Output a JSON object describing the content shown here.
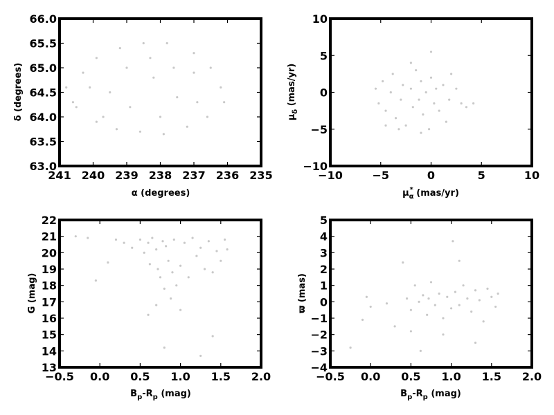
{
  "chart_data": [
    {
      "type": "scatter",
      "xlabel": "α (degrees)",
      "ylabel": "δ (degrees)",
      "xlim": [
        241,
        235
      ],
      "ylim": [
        63.0,
        66.0
      ],
      "xticks": [
        241,
        240,
        239,
        238,
        237,
        236,
        235
      ],
      "xtick_labels": [
        "241",
        "240",
        "239",
        "238",
        "237",
        "236",
        "235"
      ],
      "yticks": [
        63.0,
        63.5,
        64.0,
        64.5,
        65.0,
        65.5,
        66.0
      ],
      "ytick_labels": [
        "63.0",
        "63.5",
        "64.0",
        "64.5",
        "65.0",
        "65.5",
        "66.0"
      ],
      "point_color": "#c8c8c8",
      "points": [
        [
          240.3,
          64.9
        ],
        [
          239.9,
          65.2
        ],
        [
          239.2,
          65.4
        ],
        [
          238.5,
          65.5
        ],
        [
          237.8,
          65.5
        ],
        [
          237.0,
          65.3
        ],
        [
          236.5,
          65.0
        ],
        [
          236.2,
          64.6
        ],
        [
          236.1,
          64.3
        ],
        [
          236.6,
          64.0
        ],
        [
          237.2,
          63.8
        ],
        [
          237.9,
          63.65
        ],
        [
          238.6,
          63.7
        ],
        [
          239.3,
          63.75
        ],
        [
          239.9,
          63.9
        ],
        [
          240.5,
          64.2
        ],
        [
          240.8,
          64.6
        ],
        [
          240.6,
          64.3
        ],
        [
          239.5,
          64.5
        ],
        [
          238.9,
          64.2
        ],
        [
          238.2,
          64.8
        ],
        [
          237.5,
          64.4
        ],
        [
          237.0,
          64.9
        ],
        [
          239.0,
          65.0
        ],
        [
          238.0,
          64.0
        ],
        [
          238.3,
          65.2
        ],
        [
          237.6,
          65.0
        ],
        [
          236.9,
          64.3
        ],
        [
          239.7,
          64.0
        ],
        [
          240.1,
          64.6
        ]
      ]
    },
    {
      "type": "scatter",
      "xlabel": "μ*α (mas/yr)",
      "ylabel": "μδ (mas/yr)",
      "xlim": [
        -10,
        10
      ],
      "ylim": [
        -10,
        10
      ],
      "xticks": [
        -10,
        -5,
        0,
        5,
        10
      ],
      "xtick_labels": [
        "−10",
        "−5",
        "0",
        "5",
        "10"
      ],
      "yticks": [
        -10,
        -5,
        0,
        5,
        10
      ],
      "ytick_labels": [
        "−10",
        "−5",
        "0",
        "5",
        "10"
      ],
      "point_color": "#c8c8c8",
      "points": [
        [
          -5.5,
          0.5
        ],
        [
          -5.2,
          -1.5
        ],
        [
          -4.8,
          1.5
        ],
        [
          -4.5,
          -2.5
        ],
        [
          -4.0,
          0.0
        ],
        [
          -3.8,
          2.5
        ],
        [
          -3.5,
          -3.5
        ],
        [
          -3.0,
          -1.0
        ],
        [
          -2.8,
          1.0
        ],
        [
          -2.5,
          -4.5
        ],
        [
          -2.0,
          0.5
        ],
        [
          -1.8,
          -2.0
        ],
        [
          -1.5,
          3.0
        ],
        [
          -1.2,
          -1.0
        ],
        [
          -1.0,
          1.5
        ],
        [
          -0.8,
          -3.0
        ],
        [
          -0.5,
          0.0
        ],
        [
          -0.2,
          -5.0
        ],
        [
          0.0,
          2.0
        ],
        [
          0.3,
          -1.5
        ],
        [
          0.5,
          0.5
        ],
        [
          0.8,
          -2.5
        ],
        [
          1.2,
          1.0
        ],
        [
          1.8,
          -1.0
        ],
        [
          2.5,
          0.5
        ],
        [
          3.0,
          -1.5
        ],
        [
          3.5,
          -2.0
        ],
        [
          4.2,
          -1.5
        ],
        [
          0.0,
          5.5
        ],
        [
          -2.0,
          4.0
        ],
        [
          -4.5,
          -4.5
        ],
        [
          -3.2,
          -5.0
        ],
        [
          1.5,
          -4.0
        ],
        [
          -1.0,
          -5.5
        ],
        [
          2.0,
          2.5
        ]
      ]
    },
    {
      "type": "scatter",
      "xlabel": "Bp-Rp  (mag)",
      "ylabel": "G (mag)",
      "xlim": [
        -0.5,
        2.0
      ],
      "ylim": [
        13,
        22
      ],
      "xticks": [
        -0.5,
        0.0,
        0.5,
        1.0,
        1.5,
        2.0
      ],
      "xtick_labels": [
        "−0.5",
        "0.0",
        "0.5",
        "1.0",
        "1.5",
        "2.0"
      ],
      "yticks": [
        13,
        14,
        15,
        16,
        17,
        18,
        19,
        20,
        21,
        22
      ],
      "ytick_labels": [
        "13",
        "14",
        "15",
        "16",
        "17",
        "18",
        "19",
        "20",
        "21",
        "22"
      ],
      "point_color": "#c8c8c8",
      "points": [
        [
          -0.3,
          21.0
        ],
        [
          -0.15,
          20.9
        ],
        [
          -0.05,
          18.3
        ],
        [
          0.1,
          19.4
        ],
        [
          0.2,
          20.8
        ],
        [
          0.3,
          20.6
        ],
        [
          0.4,
          20.3
        ],
        [
          0.5,
          20.8
        ],
        [
          0.55,
          20.0
        ],
        [
          0.6,
          20.6
        ],
        [
          0.62,
          19.3
        ],
        [
          0.65,
          20.9
        ],
        [
          0.7,
          20.2
        ],
        [
          0.72,
          19.0
        ],
        [
          0.75,
          18.5
        ],
        [
          0.78,
          20.7
        ],
        [
          0.8,
          17.8
        ],
        [
          0.82,
          20.4
        ],
        [
          0.85,
          19.5
        ],
        [
          0.88,
          17.2
        ],
        [
          0.9,
          18.8
        ],
        [
          0.92,
          20.8
        ],
        [
          0.95,
          18.0
        ],
        [
          1.0,
          19.2
        ],
        [
          1.05,
          20.6
        ],
        [
          1.1,
          18.5
        ],
        [
          1.15,
          20.9
        ],
        [
          1.2,
          19.8
        ],
        [
          1.25,
          20.3
        ],
        [
          1.3,
          19.0
        ],
        [
          1.35,
          20.7
        ],
        [
          1.4,
          18.8
        ],
        [
          1.45,
          20.1
        ],
        [
          1.5,
          19.5
        ],
        [
          1.55,
          20.8
        ],
        [
          1.58,
          20.2
        ],
        [
          0.8,
          14.2
        ],
        [
          1.25,
          13.7
        ],
        [
          1.4,
          14.9
        ],
        [
          0.7,
          16.8
        ],
        [
          1.0,
          16.5
        ],
        [
          0.6,
          16.2
        ]
      ]
    },
    {
      "type": "scatter",
      "xlabel": "Bp-Rp  (mag)",
      "ylabel": "ϖ (mas)",
      "xlim": [
        -0.5,
        2.0
      ],
      "ylim": [
        -4,
        5
      ],
      "xticks": [
        -0.5,
        0.0,
        0.5,
        1.0,
        1.5,
        2.0
      ],
      "xtick_labels": [
        "−0.5",
        "0.0",
        "0.5",
        "1.0",
        "1.5",
        "2.0"
      ],
      "yticks": [
        -4,
        -3,
        -2,
        -1,
        0,
        1,
        2,
        3,
        4,
        5
      ],
      "ytick_labels": [
        "−4",
        "−3",
        "−2",
        "−1",
        "0",
        "1",
        "2",
        "3",
        "4",
        "5"
      ],
      "point_color": "#c8c8c8",
      "points": [
        [
          -0.25,
          -2.8
        ],
        [
          -0.1,
          -1.1
        ],
        [
          -0.05,
          0.3
        ],
        [
          0.0,
          -0.3
        ],
        [
          0.2,
          -0.1
        ],
        [
          0.3,
          -1.5
        ],
        [
          0.4,
          2.4
        ],
        [
          0.45,
          0.2
        ],
        [
          0.5,
          -0.5
        ],
        [
          0.55,
          1.0
        ],
        [
          0.6,
          0.0
        ],
        [
          0.62,
          -3.0
        ],
        [
          0.65,
          0.4
        ],
        [
          0.7,
          -0.8
        ],
        [
          0.72,
          0.2
        ],
        [
          0.75,
          1.2
        ],
        [
          0.8,
          -0.2
        ],
        [
          0.85,
          0.5
        ],
        [
          0.9,
          -1.0
        ],
        [
          0.95,
          0.3
        ],
        [
          1.0,
          -0.4
        ],
        [
          1.02,
          3.7
        ],
        [
          1.05,
          0.6
        ],
        [
          1.1,
          -0.2
        ],
        [
          1.15,
          1.0
        ],
        [
          1.2,
          0.2
        ],
        [
          1.25,
          -0.6
        ],
        [
          1.3,
          0.7
        ],
        [
          1.35,
          0.1
        ],
        [
          1.4,
          -1.2
        ],
        [
          1.45,
          0.8
        ],
        [
          1.5,
          0.3
        ],
        [
          1.55,
          -0.3
        ],
        [
          1.58,
          0.5
        ],
        [
          1.1,
          2.5
        ],
        [
          0.9,
          -2.0
        ],
        [
          1.3,
          -2.5
        ],
        [
          0.5,
          -1.8
        ]
      ]
    }
  ]
}
